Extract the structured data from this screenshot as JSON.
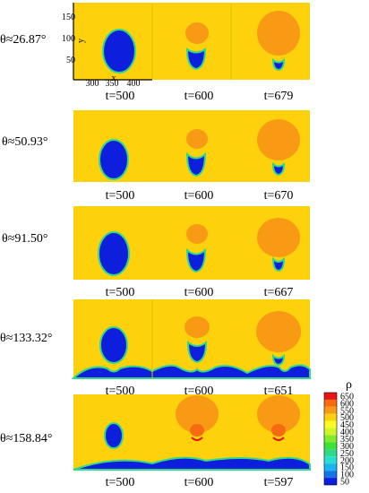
{
  "rows": [
    {
      "angle": "θ≈26.87°",
      "times": [
        "t=500",
        "t=600",
        "t=679"
      ]
    },
    {
      "angle": "θ≈50.93°",
      "times": [
        "t=500",
        "t=600",
        "t=670"
      ]
    },
    {
      "angle": "θ≈91.50°",
      "times": [
        "t=500",
        "t=600",
        "t=667"
      ]
    },
    {
      "angle": "θ≈133.32°",
      "times": [
        "t=500",
        "t=600",
        "t=651"
      ]
    },
    {
      "angle": "θ≈158.84°",
      "times": [
        "t=500",
        "t=600",
        "t=597"
      ]
    }
  ],
  "axes": {
    "y_label": "y",
    "y_ticks": [
      "150",
      "100",
      "50"
    ],
    "x_label": "x",
    "x_ticks": [
      "300",
      "350",
      "400"
    ]
  },
  "colorbar": {
    "title": "ρ",
    "ticks": [
      "650",
      "600",
      "550",
      "500",
      "450",
      "400",
      "350",
      "300",
      "250",
      "200",
      "150",
      "100",
      "50"
    ],
    "colors": [
      "#e8141a",
      "#f86a10",
      "#f99a15",
      "#fdd10c",
      "#fafa24",
      "#d2f52a",
      "#80ec2c",
      "#3fe03a",
      "#32d88a",
      "#26e0d2",
      "#1ab4f0",
      "#1476e6",
      "#0d1edc"
    ]
  },
  "palette": {
    "background": "#fdd10c",
    "liquid": "#0d1edc",
    "interface": "#32d88a",
    "vapor": "#f99a15",
    "hot": "#f86a10",
    "red": "#e8141a"
  }
}
